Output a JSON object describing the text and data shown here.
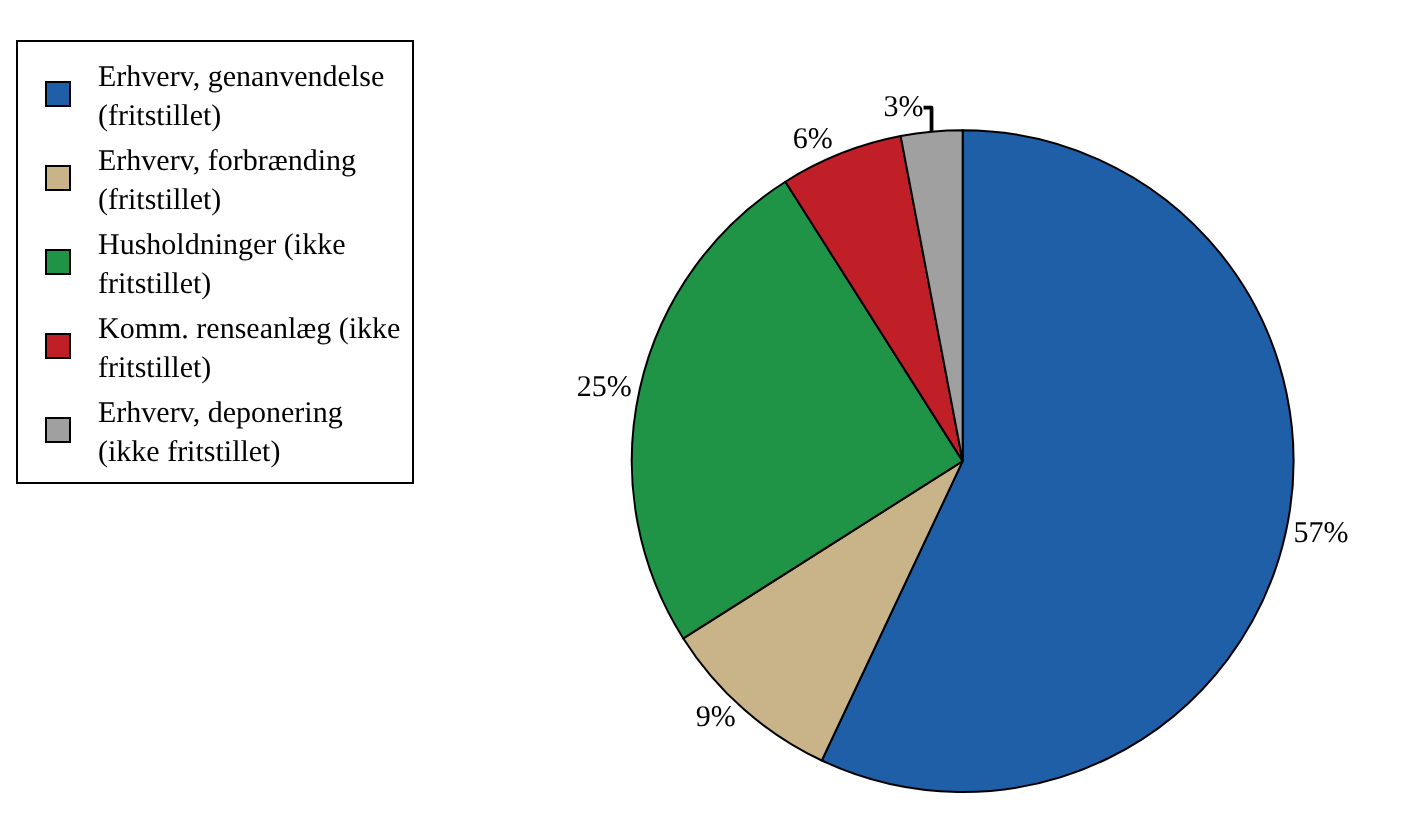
{
  "chart_data": {
    "type": "pie",
    "categories": [
      "Erhverv, genanvendelse (fritstillet)",
      "Erhverv, forbrænding (fritstillet)",
      "Husholdninger (ikke fritstillet)",
      "Komm. renseanlæg (ikke fritstillet)",
      "Erhverv, deponering (ikke fritstillet)"
    ],
    "values": [
      57,
      9,
      25,
      6,
      3
    ],
    "colors": [
      "#1f5fa8",
      "#c9b48a",
      "#1f9447",
      "#c01f28",
      "#a0a0a0"
    ],
    "value_labels": [
      "57%",
      "9%",
      "25%",
      "6%",
      "3%"
    ],
    "legend": "top left"
  }
}
